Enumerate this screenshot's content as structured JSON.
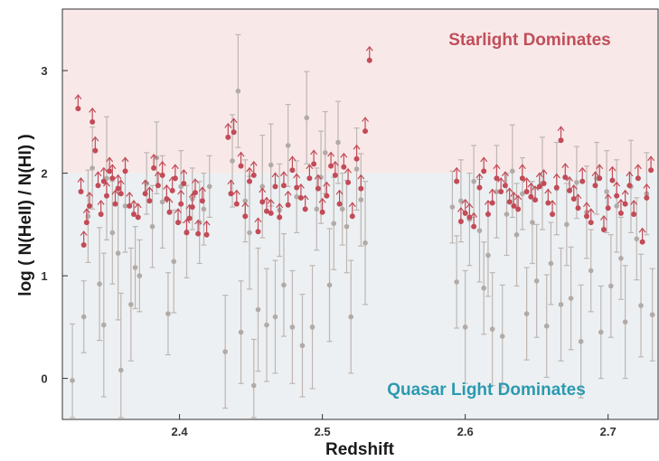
{
  "colors": {
    "starlight_region": "#f8e9e8",
    "quasar_region": "#edf0f2",
    "lower_limit": "#c24b57",
    "measurement": "#b1aaa6",
    "errorbar": "#bdb6b3",
    "starlight_label": "#c14e5a",
    "quasar_label": "#2a9ab1"
  },
  "chart_data": {
    "type": "scatter",
    "xlabel": "Redshift",
    "ylabel": "log ( N(HeII) / N(HI) )",
    "xlim": [
      2.318,
      2.735
    ],
    "ylim": [
      -0.4,
      3.6
    ],
    "region_boundary": 2.0,
    "x_ticks": [
      "2.4",
      "2.5",
      "2.6",
      "2.7"
    ],
    "y_ticks": [
      "0",
      "1",
      "2",
      "3"
    ],
    "annotations": {
      "upper": "Starlight Dominates",
      "lower": "Quasar Light Dominates"
    },
    "legend": "none",
    "grid": false,
    "series": [
      {
        "kind": "measurement",
        "marker": "gray point with error bar",
        "x": [
          2.325,
          2.333,
          2.336,
          2.339,
          2.344,
          2.347,
          2.349,
          2.353,
          2.357,
          2.359,
          2.362,
          2.366,
          2.369,
          2.372,
          2.377,
          2.381,
          2.384,
          2.388,
          2.392,
          2.396,
          2.401,
          2.405,
          2.409,
          2.414,
          2.417,
          2.421,
          2.432,
          2.437,
          2.441,
          2.443,
          2.446,
          2.449,
          2.452,
          2.455,
          2.458,
          2.461,
          2.464,
          2.467,
          2.47,
          2.473,
          2.476,
          2.479,
          2.482,
          2.486,
          2.489,
          2.493,
          2.496,
          2.499,
          2.502,
          2.505,
          2.508,
          2.511,
          2.514,
          2.517,
          2.52,
          2.524,
          2.527,
          2.53,
          2.591,
          2.594,
          2.597,
          2.6,
          2.603,
          2.606,
          2.61,
          2.613,
          2.616,
          2.619,
          2.622,
          2.626,
          2.629,
          2.633,
          2.636,
          2.64,
          2.643,
          2.647,
          2.65,
          2.654,
          2.657,
          2.66,
          2.664,
          2.667,
          2.671,
          2.674,
          2.678,
          2.681,
          2.685,
          2.688,
          2.692,
          2.695,
          2.699,
          2.702,
          2.706,
          2.709,
          2.712,
          2.716,
          2.72,
          2.723,
          2.727,
          2.731
        ],
        "y": [
          -0.02,
          0.6,
          1.58,
          2.05,
          0.92,
          0.52,
          1.95,
          1.42,
          1.22,
          0.08,
          1.68,
          0.72,
          1.08,
          1.0,
          1.9,
          1.48,
          2.15,
          1.72,
          0.63,
          1.14,
          1.87,
          1.43,
          1.75,
          1.52,
          1.65,
          1.87,
          0.26,
          2.12,
          2.8,
          0.45,
          1.73,
          1.42,
          -0.07,
          0.67,
          1.87,
          0.52,
          2.08,
          0.6,
          1.64,
          0.91,
          2.27,
          0.5,
          1.77,
          0.32,
          2.54,
          0.5,
          1.65,
          1.96,
          2.2,
          0.91,
          1.51,
          2.3,
          1.65,
          1.48,
          0.6,
          2.04,
          1.74,
          1.32,
          1.67,
          0.94,
          1.73,
          0.5,
          1.55,
          1.92,
          1.44,
          0.88,
          1.2,
          0.48,
          1.82,
          0.41,
          1.6,
          2.02,
          1.4,
          1.8,
          0.63,
          1.52,
          0.95,
          1.9,
          0.51,
          1.12,
          1.85,
          0.72,
          1.5,
          0.78,
          1.91,
          0.36,
          1.62,
          1.05,
          1.95,
          0.45,
          1.82,
          0.9,
          1.68,
          1.17,
          0.55,
          1.87,
          1.36,
          0.71,
          1.8,
          0.62
        ],
        "err": [
          0.55,
          0.35,
          0.45,
          0.4,
          0.55,
          0.7,
          0.6,
          0.5,
          0.65,
          0.75,
          0.45,
          0.55,
          0.4,
          0.35,
          0.3,
          0.4,
          0.35,
          0.45,
          0.4,
          0.5,
          0.35,
          0.45,
          0.3,
          0.4,
          0.35,
          0.3,
          0.55,
          0.45,
          0.55,
          0.5,
          0.4,
          0.55,
          0.45,
          0.6,
          0.5,
          0.55,
          0.4,
          0.55,
          0.45,
          0.5,
          0.4,
          0.55,
          0.35,
          0.5,
          0.45,
          0.6,
          0.4,
          0.45,
          0.4,
          0.55,
          0.45,
          0.4,
          0.35,
          0.45,
          0.55,
          0.4,
          0.45,
          0.6,
          0.35,
          0.45,
          0.4,
          0.55,
          0.45,
          0.35,
          0.5,
          0.45,
          0.4,
          0.55,
          0.45,
          0.5,
          0.4,
          0.45,
          0.5,
          0.35,
          0.45,
          0.4,
          0.55,
          0.45,
          0.5,
          0.4,
          0.45,
          0.55,
          0.4,
          0.5,
          0.35,
          0.55,
          0.45,
          0.4,
          0.35,
          0.45,
          0.4,
          0.5,
          0.45,
          0.4,
          0.55,
          0.45,
          0.4,
          0.5,
          0.4,
          0.45
        ]
      },
      {
        "kind": "lower_limit",
        "marker": "red point with upward arrow",
        "x": [
          2.329,
          2.331,
          2.333,
          2.335,
          2.337,
          2.339,
          2.341,
          2.343,
          2.345,
          2.347,
          2.349,
          2.351,
          2.353,
          2.355,
          2.357,
          2.359,
          2.362,
          2.365,
          2.368,
          2.371,
          2.376,
          2.379,
          2.382,
          2.385,
          2.388,
          2.391,
          2.393,
          2.395,
          2.397,
          2.399,
          2.401,
          2.403,
          2.405,
          2.407,
          2.409,
          2.411,
          2.413,
          2.416,
          2.419,
          2.434,
          2.436,
          2.438,
          2.44,
          2.443,
          2.446,
          2.449,
          2.452,
          2.455,
          2.458,
          2.461,
          2.464,
          2.467,
          2.47,
          2.473,
          2.476,
          2.479,
          2.482,
          2.485,
          2.488,
          2.491,
          2.494,
          2.497,
          2.5,
          2.503,
          2.506,
          2.509,
          2.512,
          2.515,
          2.518,
          2.521,
          2.524,
          2.527,
          2.53,
          2.533,
          2.594,
          2.597,
          2.6,
          2.603,
          2.606,
          2.61,
          2.613,
          2.616,
          2.619,
          2.622,
          2.625,
          2.628,
          2.631,
          2.634,
          2.637,
          2.64,
          2.643,
          2.646,
          2.649,
          2.652,
          2.655,
          2.658,
          2.661,
          2.664,
          2.667,
          2.67,
          2.673,
          2.676,
          2.679,
          2.682,
          2.685,
          2.688,
          2.691,
          2.694,
          2.697,
          2.7,
          2.703,
          2.706,
          2.709,
          2.712,
          2.715,
          2.718,
          2.721,
          2.724,
          2.727,
          2.73
        ],
        "y": [
          2.63,
          1.82,
          1.3,
          1.52,
          1.68,
          2.5,
          2.22,
          1.88,
          1.6,
          1.92,
          1.78,
          2.02,
          1.95,
          1.7,
          1.85,
          1.8,
          2.02,
          1.68,
          1.6,
          1.57,
          1.8,
          1.73,
          2.05,
          1.88,
          1.98,
          1.75,
          1.62,
          1.83,
          1.95,
          1.52,
          1.7,
          1.9,
          1.42,
          1.56,
          1.67,
          1.81,
          1.41,
          1.73,
          1.4,
          2.35,
          1.8,
          2.4,
          1.7,
          2.07,
          1.58,
          1.92,
          1.98,
          1.43,
          1.72,
          1.63,
          1.61,
          1.87,
          1.57,
          1.88,
          1.69,
          2.03,
          1.86,
          1.76,
          1.65,
          1.95,
          2.09,
          1.85,
          1.62,
          1.78,
          2.07,
          1.98,
          1.7,
          2.06,
          1.91,
          1.58,
          2.14,
          1.85,
          2.41,
          3.1,
          1.92,
          1.53,
          1.61,
          1.57,
          1.48,
          1.86,
          2.02,
          1.6,
          1.71,
          1.95,
          1.82,
          1.88,
          1.72,
          1.68,
          1.65,
          1.95,
          1.82,
          1.77,
          1.74,
          1.87,
          1.9,
          1.71,
          1.6,
          1.86,
          2.32,
          1.96,
          1.83,
          1.75,
          1.66,
          1.92,
          1.58,
          1.52,
          1.88,
          1.95,
          1.45,
          1.66,
          1.93,
          1.78,
          1.61,
          1.7,
          1.88,
          1.6,
          1.95,
          1.33,
          1.76,
          2.03
        ]
      }
    ]
  }
}
